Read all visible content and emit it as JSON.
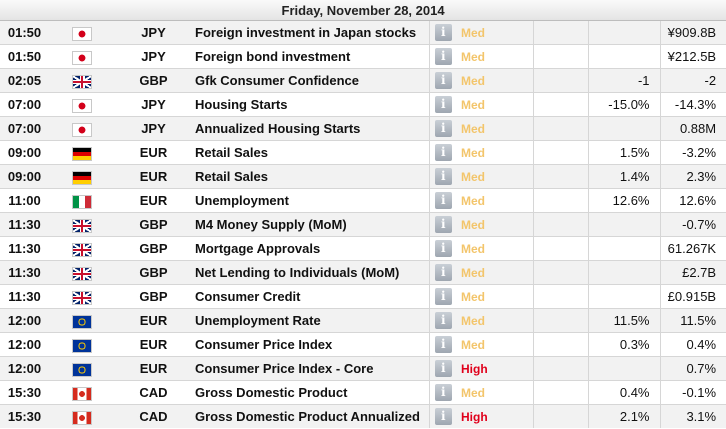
{
  "date_header": "Friday, November 28, 2014",
  "info_glyph": "i",
  "importance_colors": {
    "Med": "#f3c56b",
    "High": "#e0001b"
  },
  "events": [
    {
      "time": "01:50",
      "flag": "jpy-flag-icon",
      "currency": "JPY",
      "event": "Foreign investment in Japan stocks",
      "importance": "Med",
      "actual": "",
      "forecast": "",
      "previous": "¥909.8B"
    },
    {
      "time": "01:50",
      "flag": "jpy-flag-icon",
      "currency": "JPY",
      "event": "Foreign bond investment",
      "importance": "Med",
      "actual": "",
      "forecast": "",
      "previous": "¥212.5B"
    },
    {
      "time": "02:05",
      "flag": "gbp-flag-icon",
      "currency": "GBP",
      "event": "Gfk Consumer Confidence",
      "importance": "Med",
      "actual": "",
      "forecast": "-1",
      "previous": "-2"
    },
    {
      "time": "07:00",
      "flag": "jpy-flag-icon",
      "currency": "JPY",
      "event": "Housing Starts",
      "importance": "Med",
      "actual": "",
      "forecast": "-15.0%",
      "previous": "-14.3%"
    },
    {
      "time": "07:00",
      "flag": "jpy-flag-icon",
      "currency": "JPY",
      "event": "Annualized Housing Starts",
      "importance": "Med",
      "actual": "",
      "forecast": "",
      "previous": "0.88M"
    },
    {
      "time": "09:00",
      "flag": "deu-flag-icon",
      "currency": "EUR",
      "event": "Retail Sales",
      "importance": "Med",
      "actual": "",
      "forecast": "1.5%",
      "previous": "-3.2%"
    },
    {
      "time": "09:00",
      "flag": "deu-flag-icon",
      "currency": "EUR",
      "event": "Retail Sales",
      "importance": "Med",
      "actual": "",
      "forecast": "1.4%",
      "previous": "2.3%"
    },
    {
      "time": "11:00",
      "flag": "ita-flag-icon",
      "currency": "EUR",
      "event": "Unemployment",
      "importance": "Med",
      "actual": "",
      "forecast": "12.6%",
      "previous": "12.6%"
    },
    {
      "time": "11:30",
      "flag": "gbp-flag-icon",
      "currency": "GBP",
      "event": "M4 Money Supply (MoM)",
      "importance": "Med",
      "actual": "",
      "forecast": "",
      "previous": "-0.7%"
    },
    {
      "time": "11:30",
      "flag": "gbp-flag-icon",
      "currency": "GBP",
      "event": "Mortgage Approvals",
      "importance": "Med",
      "actual": "",
      "forecast": "",
      "previous": "61.267K"
    },
    {
      "time": "11:30",
      "flag": "gbp-flag-icon",
      "currency": "GBP",
      "event": "Net Lending to Individuals (MoM)",
      "importance": "Med",
      "actual": "",
      "forecast": "",
      "previous": "£2.7B"
    },
    {
      "time": "11:30",
      "flag": "gbp-flag-icon",
      "currency": "GBP",
      "event": "Consumer Credit",
      "importance": "Med",
      "actual": "",
      "forecast": "",
      "previous": "£0.915B"
    },
    {
      "time": "12:00",
      "flag": "eur-flag-icon",
      "currency": "EUR",
      "event": "Unemployment Rate",
      "importance": "Med",
      "actual": "",
      "forecast": "11.5%",
      "previous": "11.5%"
    },
    {
      "time": "12:00",
      "flag": "eur-flag-icon",
      "currency": "EUR",
      "event": "Consumer Price Index",
      "importance": "Med",
      "actual": "",
      "forecast": "0.3%",
      "previous": "0.4%"
    },
    {
      "time": "12:00",
      "flag": "eur-flag-icon",
      "currency": "EUR",
      "event": "Consumer Price Index - Core",
      "importance": "High",
      "actual": "",
      "forecast": "",
      "previous": "0.7%"
    },
    {
      "time": "15:30",
      "flag": "cad-flag-icon",
      "currency": "CAD",
      "event": "Gross Domestic Product",
      "importance": "Med",
      "actual": "",
      "forecast": "0.4%",
      "previous": "-0.1%"
    },
    {
      "time": "15:30",
      "flag": "cad-flag-icon",
      "currency": "CAD",
      "event": "Gross Domestic Product Annualized",
      "importance": "High",
      "actual": "",
      "forecast": "2.1%",
      "previous": "3.1%"
    }
  ]
}
